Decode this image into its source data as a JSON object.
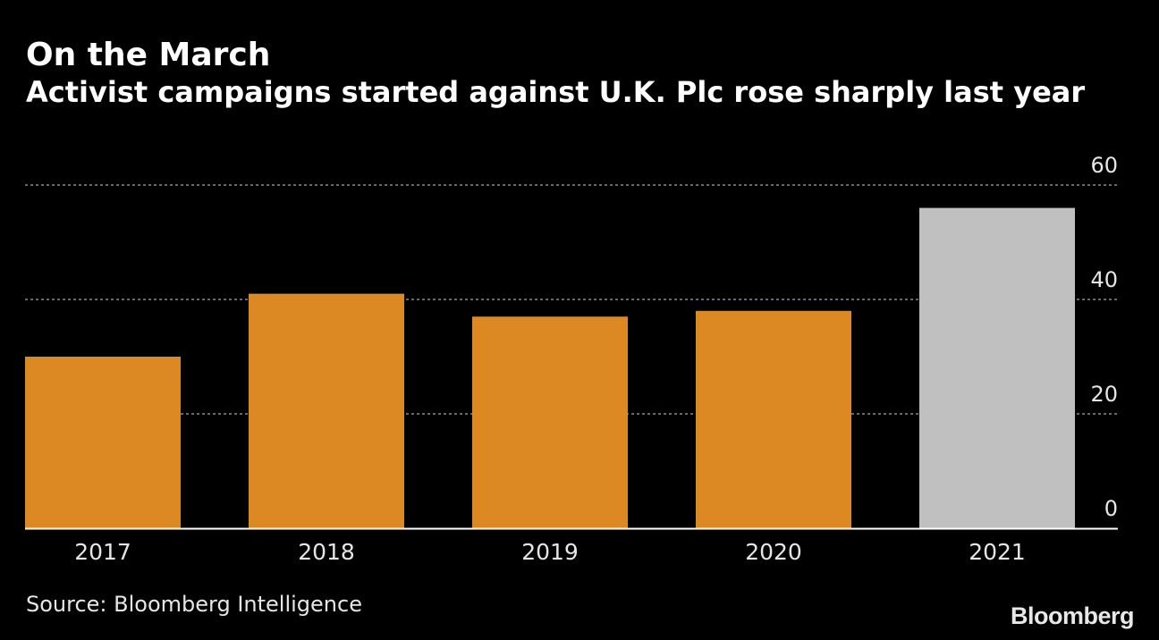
{
  "header": {
    "title": "On the March",
    "subtitle": "Activist campaigns started against U.K. Plc rose sharply last year"
  },
  "chart_data": {
    "type": "bar",
    "categories": [
      "2017",
      "2018",
      "2019",
      "2020",
      "2021"
    ],
    "values": [
      30,
      41,
      37,
      38,
      56
    ],
    "colors": [
      "#dc8823",
      "#dc8823",
      "#dc8823",
      "#dc8823",
      "#c0c0c0"
    ],
    "ylim": [
      0,
      60
    ],
    "yticks": [
      0,
      20,
      40,
      60
    ],
    "ytick_labels": [
      "0",
      "20",
      "40",
      "60"
    ],
    "grid": true,
    "axis_side": "right",
    "xlabel": "",
    "ylabel": ""
  },
  "footer": {
    "source": "Source: Bloomberg Intelligence",
    "brand": "Bloomberg"
  }
}
